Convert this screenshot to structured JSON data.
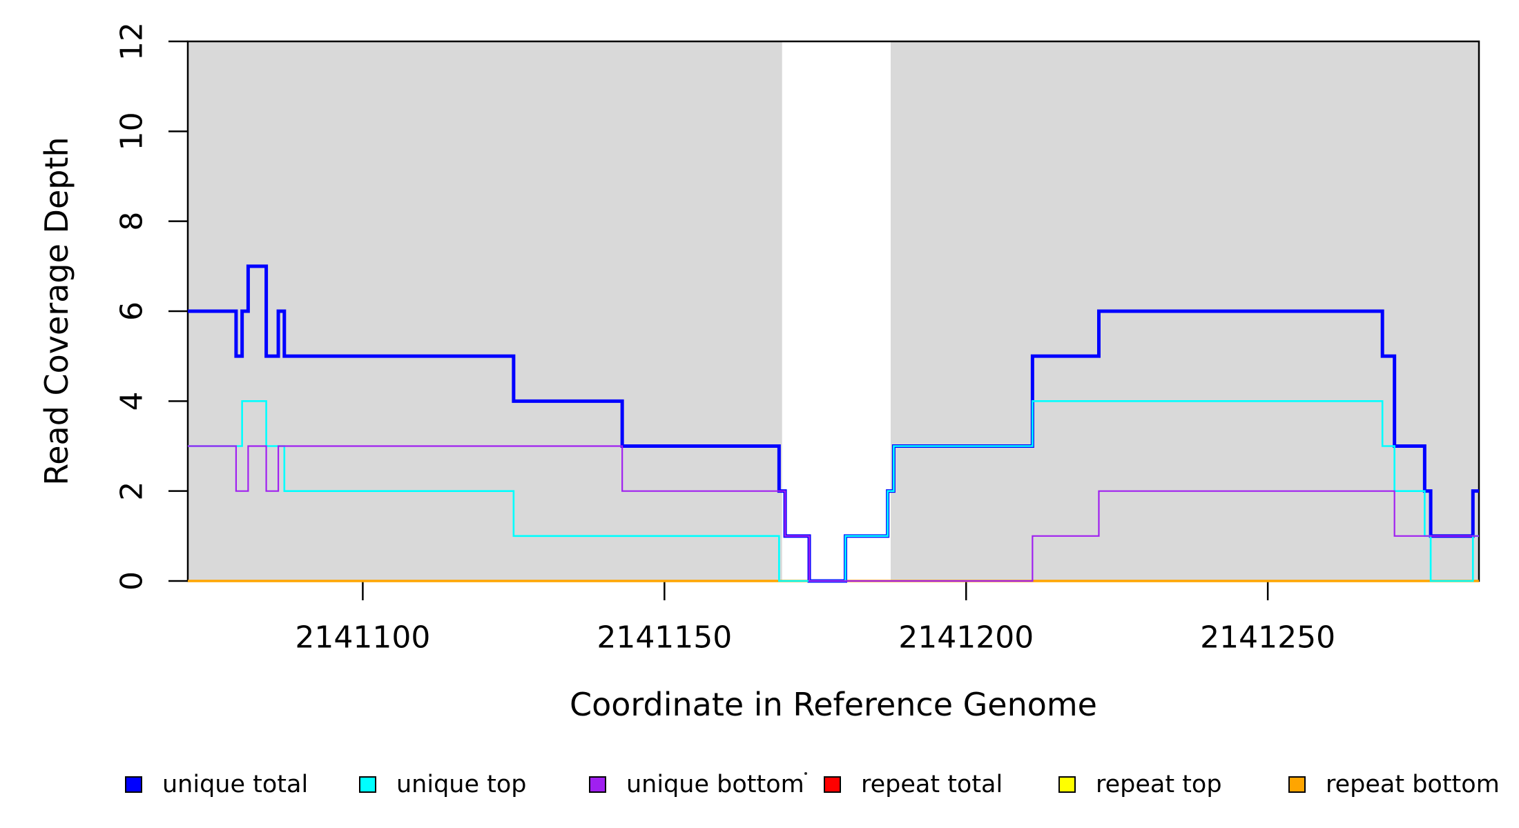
{
  "chart_data": {
    "type": "line",
    "subtype": "step-coverage-plot",
    "xlabel": "Coordinate in Reference Genome",
    "ylabel": "Read Coverage Depth",
    "xlim": [
      2141071,
      2141285
    ],
    "ylim": [
      0,
      12
    ],
    "xticks": [
      2141100,
      2141150,
      2141200,
      2141250
    ],
    "xtick_labels": [
      "2141100",
      "2141150",
      "2141200",
      "2141250"
    ],
    "yticks": [
      0,
      2,
      4,
      6,
      8,
      10,
      12
    ],
    "ytick_labels": [
      "0",
      "2",
      "4",
      "6",
      "8",
      "10",
      "12"
    ],
    "grid": false,
    "plot_background": "#ffffff",
    "shade_color": "#d9d9d9",
    "shaded_regions": [
      [
        2141071,
        2141169.5
      ],
      [
        2141187.5,
        2141285
      ]
    ],
    "axis_color": "#000000",
    "legend_position": "bottom",
    "series": [
      {
        "name": "unique total",
        "color": "#0000ff",
        "linewidth": 5,
        "segments": [
          [
            2141071,
            2141079,
            6
          ],
          [
            2141079,
            2141080,
            5
          ],
          [
            2141080,
            2141081,
            6
          ],
          [
            2141081,
            2141084,
            7
          ],
          [
            2141084,
            2141086,
            5
          ],
          [
            2141086,
            2141087,
            6
          ],
          [
            2141087,
            2141125,
            5
          ],
          [
            2141125,
            2141143,
            4
          ],
          [
            2141143,
            2141169,
            3
          ],
          [
            2141169,
            2141170,
            2
          ],
          [
            2141170,
            2141174,
            1
          ],
          [
            2141174,
            2141180,
            0
          ],
          [
            2141180,
            2141187,
            1
          ],
          [
            2141187,
            2141188,
            2
          ],
          [
            2141188,
            2141211,
            3
          ],
          [
            2141211,
            2141222,
            5
          ],
          [
            2141222,
            2141269,
            6
          ],
          [
            2141269,
            2141271,
            5
          ],
          [
            2141271,
            2141276,
            3
          ],
          [
            2141276,
            2141277,
            2
          ],
          [
            2141277,
            2141284,
            1
          ],
          [
            2141284,
            2141285,
            2
          ]
        ]
      },
      {
        "name": "unique top",
        "color": "#00ffff",
        "linewidth": 2.6,
        "segments": [
          [
            2141071,
            2141080,
            3
          ],
          [
            2141080,
            2141084,
            4
          ],
          [
            2141084,
            2141087,
            3
          ],
          [
            2141087,
            2141125,
            2
          ],
          [
            2141125,
            2141169,
            1
          ],
          [
            2141169,
            2141180,
            0
          ],
          [
            2141180,
            2141187,
            1
          ],
          [
            2141187,
            2141188,
            2
          ],
          [
            2141188,
            2141211,
            3
          ],
          [
            2141211,
            2141269,
            4
          ],
          [
            2141269,
            2141271,
            3
          ],
          [
            2141271,
            2141276,
            2
          ],
          [
            2141276,
            2141277,
            1
          ],
          [
            2141277,
            2141284,
            0
          ],
          [
            2141284,
            2141285,
            1
          ]
        ]
      },
      {
        "name": "unique bottom",
        "color": "#a020f0",
        "linewidth": 2.2,
        "segments": [
          [
            2141071,
            2141079,
            3
          ],
          [
            2141079,
            2141081,
            2
          ],
          [
            2141081,
            2141084,
            3
          ],
          [
            2141084,
            2141086,
            2
          ],
          [
            2141086,
            2141143,
            3
          ],
          [
            2141143,
            2141170,
            2
          ],
          [
            2141170,
            2141174,
            1
          ],
          [
            2141174,
            2141211,
            0
          ],
          [
            2141211,
            2141222,
            1
          ],
          [
            2141222,
            2141271,
            2
          ],
          [
            2141271,
            2141285,
            1
          ]
        ]
      },
      {
        "name": "repeat total",
        "color": "#ff0000",
        "linewidth": 2.4,
        "segments": [
          [
            2141071,
            2141285,
            0
          ]
        ]
      },
      {
        "name": "repeat top",
        "color": "#ffff00",
        "linewidth": 2.4,
        "segments": [
          [
            2141071,
            2141285,
            0
          ]
        ]
      },
      {
        "name": "repeat bottom",
        "color": "#ffa500",
        "linewidth": 3.6,
        "segments": [
          [
            2141071,
            2141285,
            0
          ]
        ]
      }
    ],
    "legend_entries": [
      {
        "label": "unique total",
        "color": "#0000ff"
      },
      {
        "label": "unique top",
        "color": "#00ffff"
      },
      {
        "label": "unique bottom",
        "color": "#a020f0"
      },
      {
        "label": "repeat total",
        "color": "#ff0000"
      },
      {
        "label": "repeat top",
        "color": "#ffff00"
      },
      {
        "label": "repeat bottom",
        "color": "#ffa500"
      }
    ]
  }
}
